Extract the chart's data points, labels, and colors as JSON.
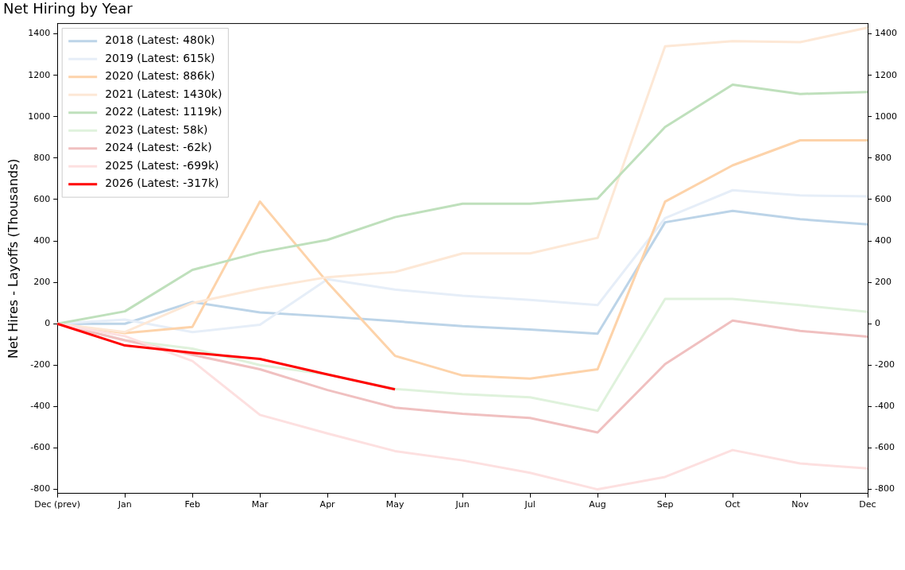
{
  "chart_data": {
    "type": "line",
    "title": "Net Hiring by Year",
    "ylabel": "Net Hires - Layoffs (Thousands)",
    "categories": [
      "Dec (prev)",
      "Jan",
      "Feb",
      "Mar",
      "Apr",
      "May",
      "Jun",
      "Jul",
      "Aug",
      "Sep",
      "Oct",
      "Nov",
      "Dec"
    ],
    "series": [
      {
        "name": "2018 (Latest: 480k)",
        "color": "#bcd4e8",
        "values": [
          0,
          0,
          105,
          55,
          35,
          12,
          -12,
          -28,
          -48,
          490,
          545,
          505,
          480
        ]
      },
      {
        "name": "2019 (Latest: 615k)",
        "color": "#e6eef8",
        "values": [
          0,
          20,
          -40,
          -5,
          215,
          165,
          135,
          115,
          90,
          510,
          645,
          620,
          615
        ]
      },
      {
        "name": "2020 (Latest: 886k)",
        "color": "#fdd3aa",
        "values": [
          0,
          -45,
          -15,
          590,
          200,
          -155,
          -250,
          -265,
          -220,
          590,
          765,
          886,
          886
        ]
      },
      {
        "name": "2021 (Latest: 1430k)",
        "color": "#fde8d6",
        "values": [
          0,
          -40,
          100,
          170,
          225,
          250,
          340,
          340,
          415,
          1340,
          1365,
          1360,
          1430
        ]
      },
      {
        "name": "2022 (Latest: 1119k)",
        "color": "#bfe0bc",
        "values": [
          0,
          60,
          260,
          345,
          405,
          515,
          580,
          580,
          605,
          950,
          1155,
          1110,
          1119
        ]
      },
      {
        "name": "2023 (Latest: 58k)",
        "color": "#dff2dc",
        "values": [
          0,
          -80,
          -120,
          -200,
          -245,
          -315,
          -340,
          -355,
          -420,
          120,
          120,
          90,
          58
        ]
      },
      {
        "name": "2024 (Latest: -62k)",
        "color": "#f0c0c0",
        "values": [
          0,
          -80,
          -150,
          -220,
          -320,
          -405,
          -435,
          -455,
          -525,
          -195,
          15,
          -35,
          -62
        ]
      },
      {
        "name": "2025 (Latest: -699k)",
        "color": "#fde0e0",
        "values": [
          0,
          -60,
          -180,
          -440,
          -530,
          -615,
          -660,
          -720,
          -800,
          -740,
          -610,
          -675,
          -699
        ]
      },
      {
        "name": "2026 (Latest: -317k)",
        "color": "#ff0000",
        "values": [
          0,
          -105,
          -140,
          -170,
          -245,
          -317,
          null,
          null,
          null,
          null,
          null,
          null,
          null
        ]
      }
    ],
    "ylim": [
      -820,
      1450
    ],
    "yticks": [
      -800,
      -600,
      -400,
      -200,
      0,
      200,
      400,
      600,
      800,
      1000,
      1200,
      1400
    ],
    "y2lim": [
      -820,
      1450
    ],
    "y2ticks": [
      -800,
      -600,
      -400,
      -200,
      0,
      200,
      400,
      600,
      800,
      1000,
      1200,
      1400
    ],
    "legend": "top left",
    "grid": false,
    "marker": "none",
    "line_style": "solid"
  }
}
